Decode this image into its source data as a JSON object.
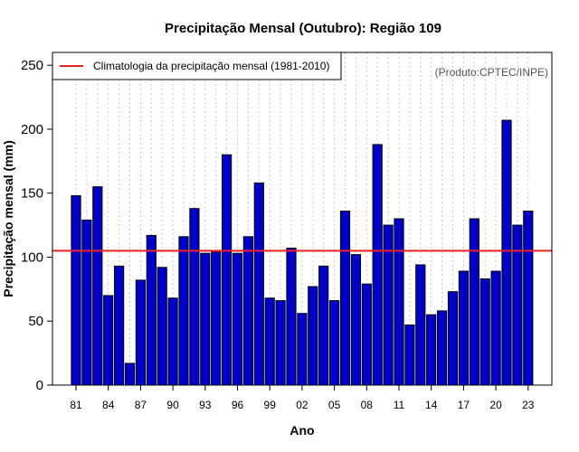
{
  "chart_data": {
    "type": "bar",
    "title": "Precipitação Mensal (Outubro): Região 109",
    "xlabel": "Ano",
    "ylabel": "Precipitação mensal (mm)",
    "ylim": [
      0,
      260
    ],
    "yticks": [
      0,
      50,
      100,
      150,
      200,
      250
    ],
    "categories": [
      "1981",
      "1982",
      "1983",
      "1984",
      "1985",
      "1986",
      "1987",
      "1988",
      "1989",
      "1990",
      "1991",
      "1992",
      "1993",
      "1994",
      "1995",
      "1996",
      "1997",
      "1998",
      "1999",
      "2000",
      "2001",
      "2002",
      "2003",
      "2004",
      "2005",
      "2006",
      "2007",
      "2008",
      "2009",
      "2010",
      "2011",
      "2012",
      "2013",
      "2014",
      "2015",
      "2016",
      "2017",
      "2018",
      "2019",
      "2020",
      "2021",
      "2022",
      "2023"
    ],
    "values": [
      148,
      129,
      155,
      70,
      93,
      17,
      82,
      117,
      92,
      68,
      116,
      138,
      103,
      104,
      180,
      103,
      116,
      158,
      68,
      66,
      107,
      56,
      77,
      93,
      66,
      136,
      102,
      79,
      188,
      125,
      130,
      47,
      94,
      55,
      58,
      73,
      89,
      130,
      83,
      89,
      207,
      125,
      136
    ],
    "x_tick_labels": [
      "81",
      "84",
      "87",
      "90",
      "93",
      "96",
      "99",
      "02",
      "05",
      "08",
      "11",
      "14",
      "17",
      "20",
      "23"
    ],
    "x_tick_every": 3,
    "climatology": 105,
    "legend": {
      "label": "Climatologia da precipitação mensal (1981-2010)",
      "position": "top-left"
    },
    "credit": "(Produto:CPTEC/INPE)",
    "grid": true,
    "colors": {
      "bar_fill": "#0000cc",
      "bar_stroke": "#000000",
      "climatology_line": "#ee2222",
      "grid": "#c8c8c8"
    }
  }
}
